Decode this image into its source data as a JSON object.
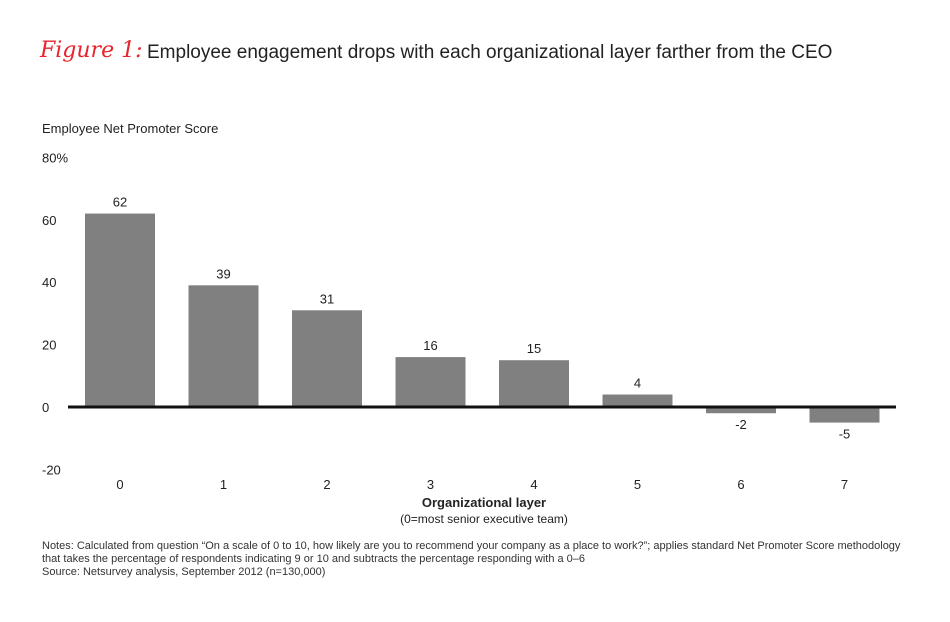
{
  "figure_label": "Figure 1:",
  "chart_data": {
    "type": "bar",
    "title": "Employee engagement drops with each organizational layer farther from the CEO",
    "ylabel": "Employee Net Promoter Score",
    "xlabel": "Organizational layer",
    "xlabel_sub": "(0=most senior executive team)",
    "categories": [
      "0",
      "1",
      "2",
      "3",
      "4",
      "5",
      "6",
      "7"
    ],
    "values": [
      62,
      39,
      31,
      16,
      15,
      4,
      -2,
      -5
    ],
    "ylim": [
      -20,
      80
    ],
    "yticks": [
      {
        "v": 80,
        "label": "80%"
      },
      {
        "v": 60,
        "label": "60"
      },
      {
        "v": 40,
        "label": "40"
      },
      {
        "v": 20,
        "label": "20"
      },
      {
        "v": 0,
        "label": "0"
      },
      {
        "v": -20,
        "label": "-20"
      }
    ],
    "grid": false,
    "bar_color": "#808080",
    "title_accent": "#e8242c"
  },
  "notes": [
    "Notes: Calculated from question “On a scale of 0 to 10, how likely are you to recommend your company as a place to work?”; applies standard Net Promoter Score methodology",
    "that takes the percentage of respondents indicating 9 or 10 and subtracts the percentage responding with a 0–6",
    "Source: Netsurvey analysis, September 2012 (n=130,000)"
  ]
}
